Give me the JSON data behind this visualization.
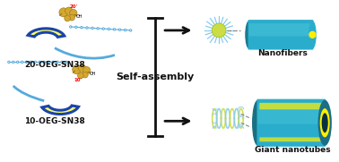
{
  "bg_color": "#ffffff",
  "teal_color": "#2AADCC",
  "teal_dark": "#1E8FAA",
  "teal_shadow": "#1A7A90",
  "yellow_color": "#FFEE00",
  "blue_chain_color": "#55AADD",
  "drug_color": "#D4A830",
  "drug_edge": "#9A7010",
  "black_color": "#111111",
  "gray_color": "#888888",
  "banana_yellow": "#FFFF55",
  "banana_edge": "#1A44AA",
  "spike_yellow": "#CCDD44",
  "spike_blue": "#88CCEE",
  "helix_yellow": "#CCDD44",
  "helix_blue": "#88CCEE",
  "text_20oeg": "20-OEG-SN38",
  "text_10oeg": "10-OEG-SN38",
  "text_selfassembly": "Self-assembly",
  "text_nanofibers": "Nanofibers",
  "text_giantnano": "Giant nanotubes",
  "figsize": [
    3.78,
    1.81
  ],
  "dpi": 100
}
